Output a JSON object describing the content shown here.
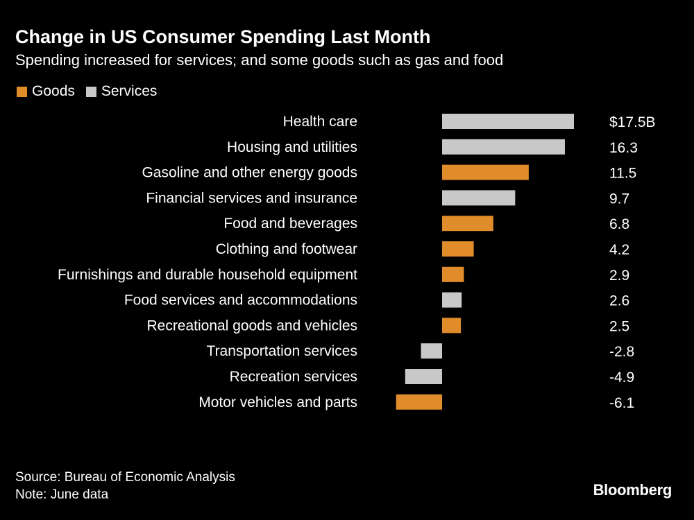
{
  "chart_data": {
    "type": "bar",
    "orientation": "horizontal",
    "title": "Change in US Consumer Spending Last Month",
    "subtitle": "Spending increased for services; and some goods such as gas and food",
    "legend": {
      "placement": "top-left",
      "entries": [
        {
          "name": "Goods",
          "color": "#e08c2a"
        },
        {
          "name": "Services",
          "color": "#c8c8c8"
        }
      ]
    },
    "categories": [
      "Health care",
      "Housing and utilities",
      "Gasoline and other energy goods",
      "Financial services and insurance",
      "Food and beverages",
      "Clothing and footwear",
      "Furnishings and durable household equipment",
      "Food services and accommodations",
      "Recreational goods and vehicles",
      "Transportation services",
      "Recreation services",
      "Motor vehicles and parts"
    ],
    "values": [
      17.5,
      16.3,
      11.5,
      9.7,
      6.8,
      4.2,
      2.9,
      2.6,
      2.5,
      -2.8,
      -4.9,
      -6.1
    ],
    "groups": [
      "Services",
      "Services",
      "Goods",
      "Services",
      "Goods",
      "Goods",
      "Goods",
      "Services",
      "Goods",
      "Services",
      "Services",
      "Goods"
    ],
    "value_labels": [
      "$17.5B",
      "16.3",
      "11.5",
      "9.7",
      "6.8",
      "4.2",
      "2.9",
      "2.6",
      "2.5",
      "-2.8",
      "-4.9",
      "-6.1"
    ],
    "unit": "$B",
    "grid": false
  },
  "footer": {
    "source": "Source: Bureau of Economic Analysis",
    "note": "Note: June data"
  },
  "brand": "Bloomberg",
  "colors": {
    "background": "#000000",
    "goods": "#e08c2a",
    "services": "#c8c8c8"
  }
}
